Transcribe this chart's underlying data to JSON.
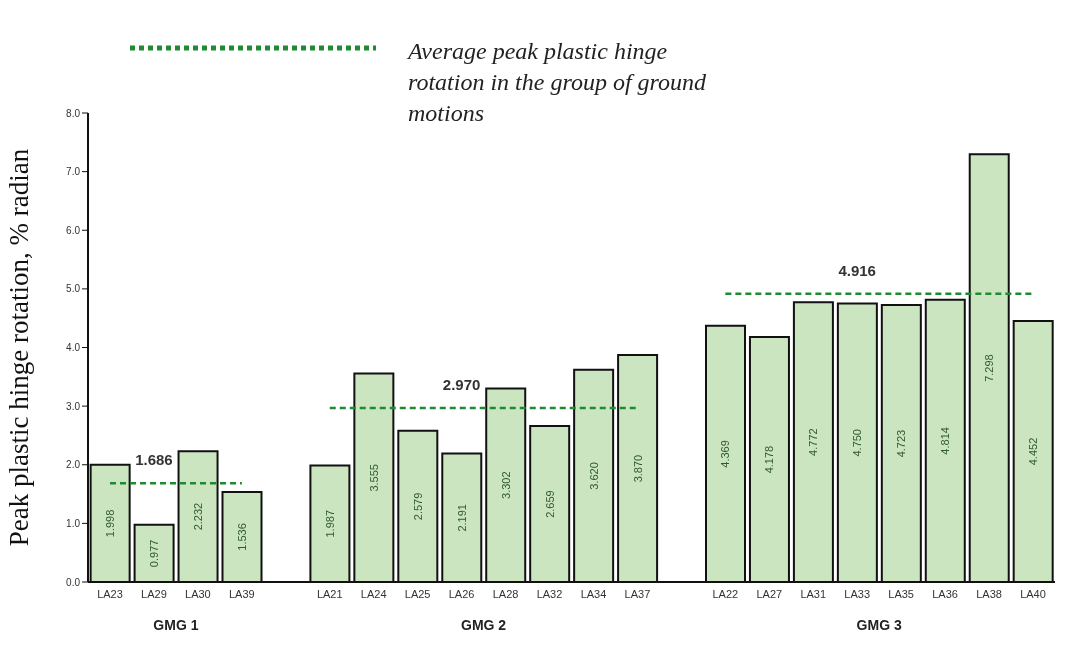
{
  "chart_data": {
    "type": "bar",
    "ylabel": "Peak plastic hinge rotation, % radian",
    "categories": [
      "LA23",
      "LA29",
      "LA30",
      "LA39",
      null,
      "LA21",
      "LA24",
      "LA25",
      "LA26",
      "LA28",
      "LA32",
      "LA34",
      "LA37",
      null,
      "LA22",
      "LA27",
      "LA31",
      "LA33",
      "LA35",
      "LA36",
      "LA38",
      "LA40"
    ],
    "series": [
      {
        "color": "#cce5c1",
        "values": [
          1.998,
          0.977,
          2.232,
          1.536,
          null,
          1.987,
          3.555,
          2.579,
          2.191,
          3.302,
          2.659,
          3.62,
          3.87,
          null,
          4.369,
          4.178,
          4.772,
          4.75,
          4.723,
          4.814,
          7.298,
          4.452
        ],
        "value_labels": [
          "1.998",
          "0.977",
          "2.232",
          "1.536",
          null,
          "1.987",
          "3.555",
          "2.579",
          "2.191",
          "3.302",
          "2.659",
          "3.620",
          "3.870",
          null,
          "4.369",
          "4.178",
          "4.772",
          "4.750",
          "4.723",
          "4.814",
          "7.298",
          "4.452"
        ]
      },
      {
        "type": "line",
        "name": "Average peak plastic hinge rotation in the group of ground motions",
        "color": "#1e8a32",
        "values": [
          1.686,
          1.686,
          1.686,
          1.686,
          null,
          2.97,
          2.97,
          2.97,
          2.97,
          2.97,
          2.97,
          2.97,
          2.97,
          null,
          4.916,
          4.916,
          4.916,
          4.916,
          4.916,
          4.916,
          4.916,
          4.916
        ],
        "value_labels": [
          null,
          "1.686",
          null,
          null,
          null,
          null,
          null,
          null,
          "2.970",
          null,
          null,
          null,
          null,
          null,
          null,
          null,
          null,
          "4.916",
          null,
          null,
          null,
          null
        ]
      }
    ],
    "annotations": [
      "GMG 1",
      "GMG 2",
      "GMG 3"
    ],
    "ylim": [
      0,
      8
    ],
    "yticks": [
      {
        "value": 0,
        "label": "0.0"
      },
      {
        "value": 1,
        "label": "1.0"
      },
      {
        "value": 2,
        "label": "2.0"
      },
      {
        "value": 3,
        "label": "3.0"
      },
      {
        "value": 4,
        "label": "4.0"
      },
      {
        "value": 5,
        "label": "5.0"
      },
      {
        "value": 6,
        "label": "6.0"
      },
      {
        "value": 7,
        "label": "7.0"
      },
      {
        "value": 8,
        "label": "8.0"
      }
    ],
    "grid": false,
    "legend": "top left",
    "marker": "none",
    "line_style": "dashed"
  }
}
